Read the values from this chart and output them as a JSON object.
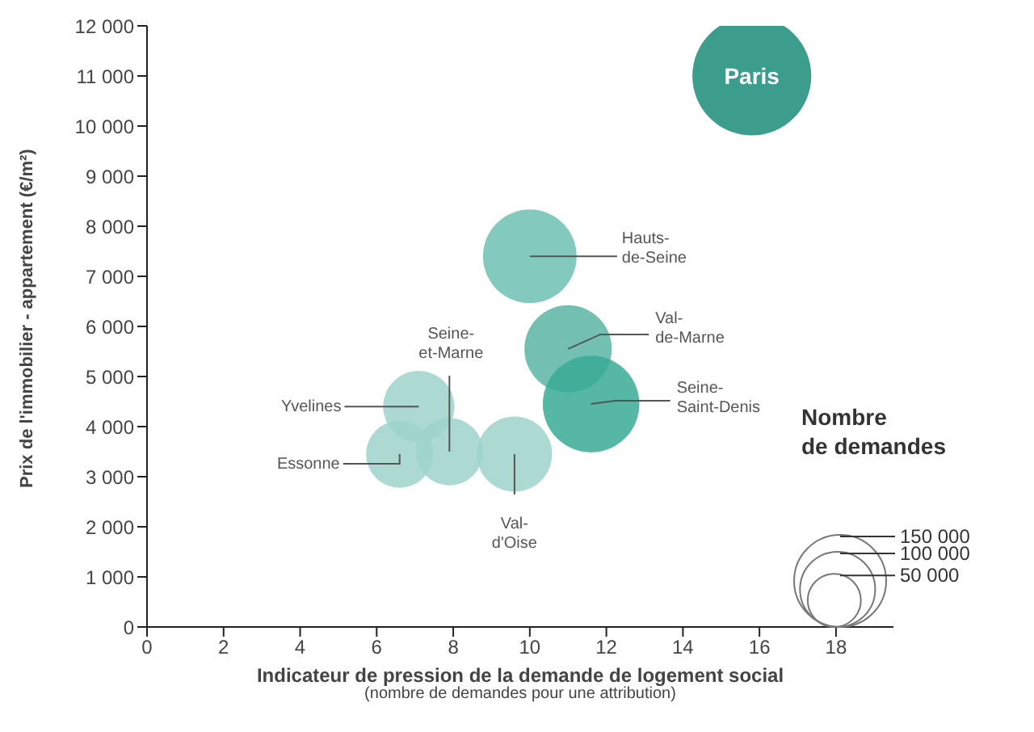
{
  "chart_data": {
    "type": "bubble",
    "xlabel": "Indicateur de pression de la demande de logement social",
    "ylabel": "Prix de l'immobilier - appartement (€/m²)",
    "legend_title": "Nombre\nde demandes",
    "annotations": [
      "(nombre de demandes pour une attribution)",
      {
        "text": "Paris",
        "x": 15.8,
        "y": 11000
      },
      {
        "text": "Hauts-\nde-Seine",
        "x": 10,
        "y": 7400
      },
      {
        "text": "Val-\nde-Marne",
        "x": 11,
        "y": 5550
      },
      {
        "text": "Seine-\nSaint-Denis",
        "x": 11.6,
        "y": 4450
      },
      {
        "text": "Yvelines",
        "x": 7.1,
        "y": 4400
      },
      {
        "text": "Essonne",
        "x": 6.6,
        "y": 3450
      },
      {
        "text": "Seine-\net-Marne",
        "x": 7.9,
        "y": 3500
      },
      {
        "text": "Val-\nd'Oise",
        "x": 9.6,
        "y": 3450
      }
    ],
    "x": [
      15.8,
      10,
      11,
      11.6,
      7.1,
      6.6,
      7.9,
      9.6
    ],
    "values": [
      11000,
      7400,
      5550,
      4450,
      4400,
      3450,
      3500,
      3450
    ],
    "sizes": [
      250000,
      155000,
      135000,
      165000,
      90000,
      80000,
      80000,
      100000
    ],
    "colors": [
      "#1a8c78",
      "#6fbfb2",
      "#5bb5a6",
      "#3aaa95",
      "#9dd3ca",
      "#9dd3ca",
      "#9dd3ca",
      "#9dd3ca"
    ],
    "size_legend": [
      {
        "value": 150000,
        "label": "150 000"
      },
      {
        "value": 100000,
        "label": "100 000"
      },
      {
        "value": 50000,
        "label": "50 000"
      }
    ],
    "xlim": [
      0,
      19.5
    ],
    "xticks": [
      0,
      2,
      4,
      6,
      8,
      10,
      12,
      14,
      16,
      18
    ],
    "ylim": [
      0,
      12000
    ],
    "yticks": [
      {
        "value": 0,
        "label": "0"
      },
      {
        "value": 1000,
        "label": "1 000"
      },
      {
        "value": 2000,
        "label": "2 000"
      },
      {
        "value": 3000,
        "label": "3 000"
      },
      {
        "value": 4000,
        "label": "4 000"
      },
      {
        "value": 5000,
        "label": "5 000"
      },
      {
        "value": 6000,
        "label": "6 000"
      },
      {
        "value": 7000,
        "label": "7 000"
      },
      {
        "value": 8000,
        "label": "8 000"
      },
      {
        "value": 9000,
        "label": "9 000"
      },
      {
        "value": 10000,
        "label": "10 000"
      },
      {
        "value": 11000,
        "label": "11 000"
      },
      {
        "value": 12000,
        "label": "12 000"
      }
    ],
    "grid": false
  }
}
